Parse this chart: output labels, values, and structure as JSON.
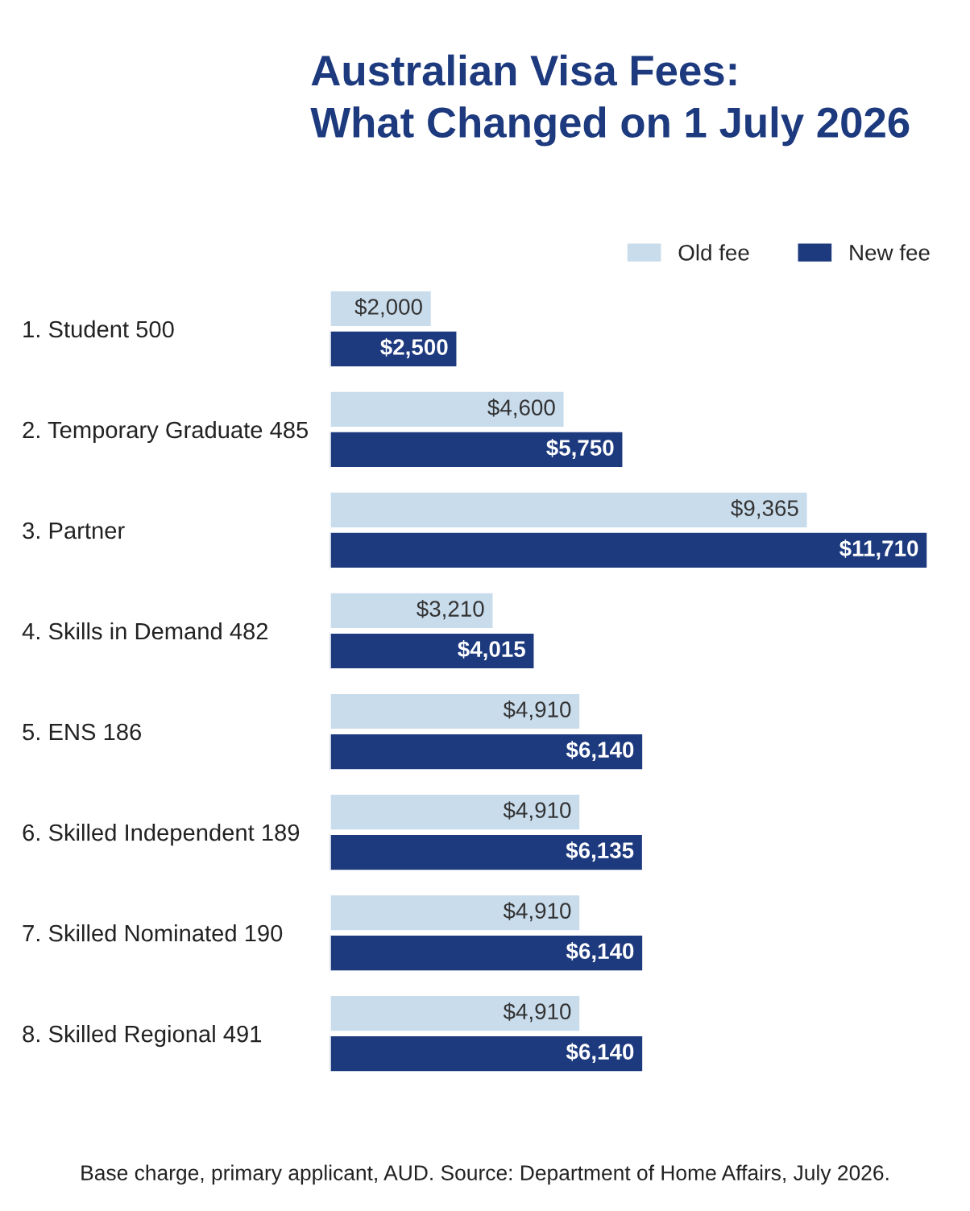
{
  "chart_data": {
    "type": "bar",
    "orientation": "horizontal",
    "title": "Australian Visa Fees:\nWhat Changed on 1 July 2026",
    "categories": [
      "1. Student 500",
      "2. Temporary Graduate 485",
      "3. Partner",
      "4. Skills in Demand 482",
      "5. ENS 186",
      "6. Skilled Independent 189",
      "7. Skilled Nominated 190",
      "8. Skilled Regional 491"
    ],
    "series": [
      {
        "name": "Old fee",
        "color": "#c9dcec",
        "values": [
          2000,
          4600,
          9365,
          3210,
          4910,
          4910,
          4910,
          4910
        ],
        "value_labels": [
          "$2,000",
          "$4,600",
          "$9,365",
          "$3,210",
          "$4,910",
          "$4,910",
          "$4,910",
          "$4,910"
        ]
      },
      {
        "name": "New fee",
        "color": "#1d3a7e",
        "values": [
          2500,
          5750,
          11710,
          4015,
          6140,
          6135,
          6140,
          6140
        ],
        "value_labels": [
          "$2,500",
          "$5,750",
          "$11,710",
          "$4,015",
          "$6,140",
          "$6,135",
          "$6,140",
          "$6,140"
        ]
      }
    ],
    "legend": "top right",
    "grid": false,
    "annotations": [
      "Base charge, primary applicant, AUD. Source: Department of Home Affairs, July 2026."
    ]
  }
}
